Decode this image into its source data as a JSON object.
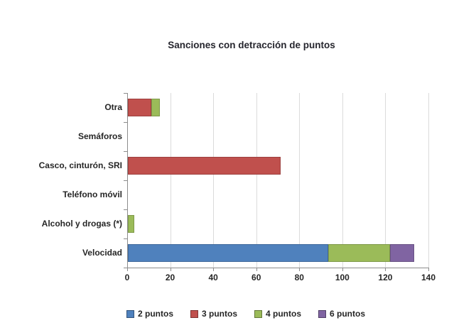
{
  "chart_data": {
    "type": "bar",
    "orientation": "horizontal",
    "stacked": true,
    "title": "Sanciones con detracción de puntos",
    "categories": [
      "Otra",
      "Semáforos",
      "Casco, cinturón, SRI",
      "Teléfono móvil",
      "Alcohol y drogas (*)",
      "Velocidad"
    ],
    "series": [
      {
        "name": "2 puntos",
        "color": "#4F81BD",
        "values": [
          0,
          0,
          0,
          0,
          0,
          93
        ]
      },
      {
        "name": "3 puntos",
        "color": "#C0504D",
        "values": [
          11,
          0,
          71,
          0,
          0,
          0
        ]
      },
      {
        "name": "4 puntos",
        "color": "#9BBB59",
        "values": [
          4,
          0,
          0,
          0,
          3,
          29
        ]
      },
      {
        "name": "6 puntos",
        "color": "#8064A2",
        "values": [
          0,
          0,
          0,
          0,
          0,
          11
        ]
      }
    ],
    "xlim": [
      0,
      140
    ],
    "xticks": [
      0,
      20,
      40,
      60,
      80,
      100,
      120,
      140
    ],
    "grid": "vertical",
    "legend_position": "bottom",
    "style": {
      "axis_color": "#8C8C8C",
      "gridline_color": "#DBDBDB",
      "text_color": "#262626",
      "title_color": "#26262E",
      "background": "#FFFFFF"
    }
  }
}
